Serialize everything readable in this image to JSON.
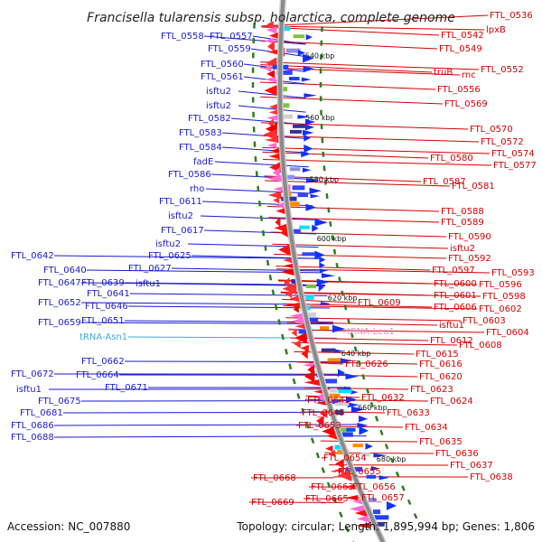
{
  "title": "Francisella tularensis subsp. holarctica, complete genome",
  "accession": "Accession: NC_007880",
  "topology": "Topology: circular; Length: 1,895,994 bp; Genes: 1,806",
  "colors": {
    "left_labels": "#1a1ad0",
    "right_labels": "#d40000",
    "trna_left": "#3fa9e0",
    "trna_right": "#ee8cc8",
    "backbone": "#8a8a8a",
    "tick": "#2e7d1e"
  },
  "kbp_marks": [
    {
      "label": "540 kbp"
    },
    {
      "label": "560 kbp"
    },
    {
      "label": "580 kbp"
    },
    {
      "label": "600 kbp"
    },
    {
      "label": "620 kbp"
    },
    {
      "label": "640 kbp"
    },
    {
      "label": "660 kbp"
    },
    {
      "label": "680 kbp"
    }
  ],
  "left_genes": [
    {
      "label": "FTL_0558"
    },
    {
      "label": "FTL_0557"
    },
    {
      "label": "FTL_0559"
    },
    {
      "label": "FTL_0560"
    },
    {
      "label": "FTL_0561"
    },
    {
      "label": "isftu2"
    },
    {
      "label": "isftu2"
    },
    {
      "label": "FTL_0582"
    },
    {
      "label": "FTL_0583"
    },
    {
      "label": "FTL_0584"
    },
    {
      "label": "fadE"
    },
    {
      "label": "FTL_0586"
    },
    {
      "label": "rho"
    },
    {
      "label": "FTL_0611"
    },
    {
      "label": "isftu2"
    },
    {
      "label": "FTL_0617"
    },
    {
      "label": "isftu2"
    },
    {
      "label": "FTL_0625"
    },
    {
      "label": "FTL_0642"
    },
    {
      "label": "FTL_0627"
    },
    {
      "label": "FTL_0640"
    },
    {
      "label": "FTL_0647"
    },
    {
      "label": "FTL_0639"
    },
    {
      "label": "isftu1"
    },
    {
      "label": "FTL_0641"
    },
    {
      "label": "FTL_0652"
    },
    {
      "label": "FTL_0646"
    },
    {
      "label": "FTL_0659"
    },
    {
      "label": "FTL_0651"
    },
    {
      "label": "tRNA-Asn1"
    },
    {
      "label": "FTL_0662"
    },
    {
      "label": "FTL_0672"
    },
    {
      "label": "FTL_0664"
    },
    {
      "label": "FTL_0671"
    },
    {
      "label": "isftu1"
    },
    {
      "label": "FTL_0675"
    },
    {
      "label": "FTL_0681"
    },
    {
      "label": "FTL_0686"
    },
    {
      "label": "FTL_0688"
    }
  ],
  "right_genes": [
    {
      "label": "FTL_0536"
    },
    {
      "label": "FTL_0542"
    },
    {
      "label": "lpxB"
    },
    {
      "label": "FTL_0549"
    },
    {
      "label": "truB"
    },
    {
      "label": "rnc"
    },
    {
      "label": "FTL_0552"
    },
    {
      "label": "FTL_0556"
    },
    {
      "label": "FTL_0569"
    },
    {
      "label": "FTL_0570"
    },
    {
      "label": "FTL_0572"
    },
    {
      "label": "FTL_0574"
    },
    {
      "label": "FTL_0580"
    },
    {
      "label": "FTL_0577"
    },
    {
      "label": "FTL_0587"
    },
    {
      "label": "FTL_0581"
    },
    {
      "label": "FTL_0588"
    },
    {
      "label": "FTL_0589"
    },
    {
      "label": "FTL_0590"
    },
    {
      "label": "isftu2"
    },
    {
      "label": "FTL_0592"
    },
    {
      "label": "FTL_0597"
    },
    {
      "label": "FTL_0593"
    },
    {
      "label": "FTL_0600"
    },
    {
      "label": "FTL_0596"
    },
    {
      "label": "FTL_0601"
    },
    {
      "label": "FTL_0598"
    },
    {
      "label": "FTL_0609"
    },
    {
      "label": "FTL_0606"
    },
    {
      "label": "FTL_0602"
    },
    {
      "label": "FTL_0603"
    },
    {
      "label": "tRNA-Leu1"
    },
    {
      "label": "isftu1"
    },
    {
      "label": "FTL_0604"
    },
    {
      "label": "FTL_0612"
    },
    {
      "label": "FTL_0608"
    },
    {
      "label": "FTL_0615"
    },
    {
      "label": "FTL_0616"
    },
    {
      "label": "FTL_0626"
    },
    {
      "label": "FTL_0620"
    },
    {
      "label": "FTL_0623"
    },
    {
      "label": "FTL_0632"
    },
    {
      "label": "FTL_0624"
    },
    {
      "label": "FTL_0643"
    },
    {
      "label": "FTL_0645"
    },
    {
      "label": "FTL_0633"
    },
    {
      "label": "FTL_0653"
    },
    {
      "label": "FTL_0634"
    },
    {
      "label": "FTL_0635"
    },
    {
      "label": "FTL_0636"
    },
    {
      "label": "FTL_0654"
    },
    {
      "label": "FTL_0637"
    },
    {
      "label": "FTL_0655"
    },
    {
      "label": "FTL_0638"
    },
    {
      "label": "FTL_0668"
    },
    {
      "label": "FTL_0663"
    },
    {
      "label": "FTL_0656"
    },
    {
      "label": "FTL_0665"
    },
    {
      "label": "FTL_0657"
    },
    {
      "label": "FTL_0669"
    }
  ]
}
